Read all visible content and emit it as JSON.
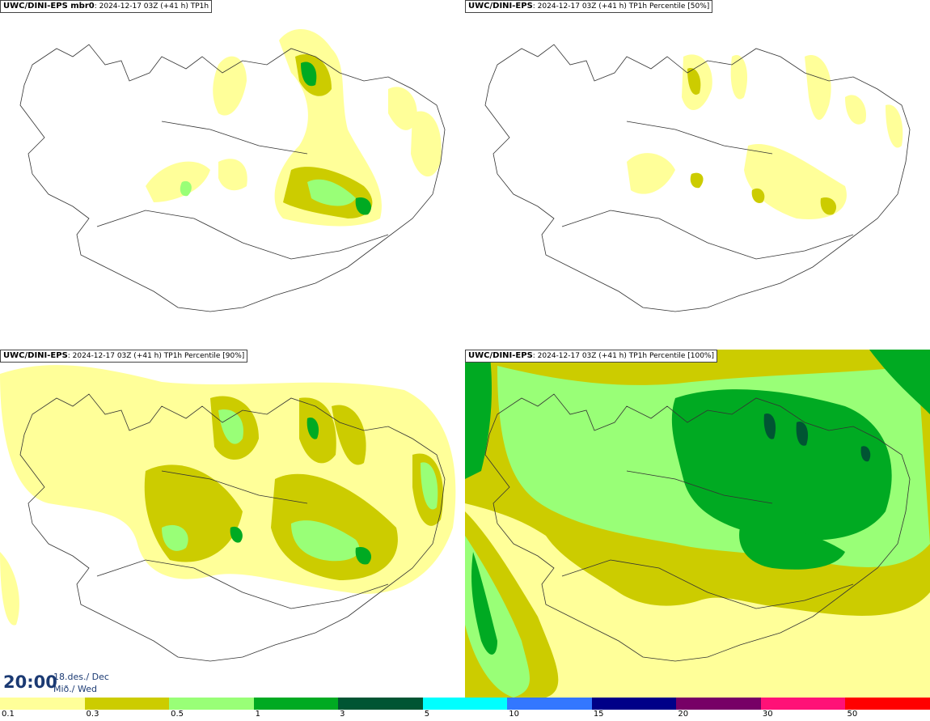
{
  "panels": [
    {
      "model": "UWC/DINI-EPS mbr0",
      "meta": ": 2024-12-17 03Z (+41 h)",
      "product": "TP1h"
    },
    {
      "model": "UWC/DINI-EPS",
      "meta": ": 2024-12-17 03Z (+41 h)",
      "product": "TP1h Percentile [50%]"
    },
    {
      "model": "UWC/DINI-EPS",
      "meta": ": 2024-12-17 03Z (+41 h)",
      "product": "TP1h Percentile [90%]"
    },
    {
      "model": "UWC/DINI-EPS",
      "meta": ": 2024-12-17 03Z (+41 h)",
      "product": "TP1h Percentile [100%]"
    }
  ],
  "valid_time": {
    "time": "20:00",
    "date": "18.des./ Dec",
    "day": "Mið./ Wed"
  },
  "legend": {
    "thresholds": [
      "0.1",
      "0.3",
      "0.5",
      "1",
      "3",
      "5",
      "10",
      "15",
      "20",
      "30",
      "50"
    ],
    "colors": [
      "#ffff99",
      "#cccc00",
      "#99ff77",
      "#00aa22",
      "#005533",
      "#00ffff",
      "#3377ff",
      "#000088",
      "#770066",
      "#ff1177",
      "#ff0000"
    ]
  }
}
